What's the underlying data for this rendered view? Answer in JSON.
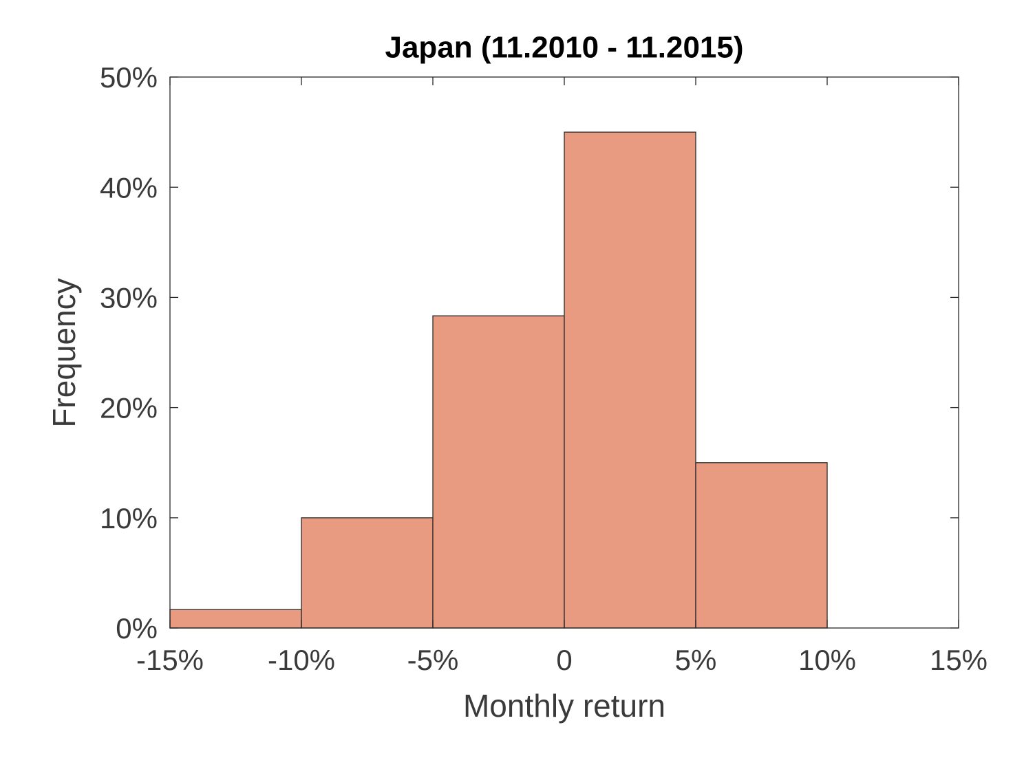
{
  "chart_data": {
    "type": "histogram",
    "title": "Japan (11.2010 - 11.2015)",
    "x_label": "Monthly return",
    "y_label": "Frequency",
    "bins": [
      -15,
      -10,
      -5,
      0,
      5,
      10,
      15
    ],
    "counts": [
      1.67,
      10,
      28.33,
      45,
      15,
      0
    ],
    "color": "#e99b82",
    "edge_color": "#2b2b2b",
    "xlim": [
      -15,
      15
    ],
    "ylim": [
      0,
      50
    ],
    "xticks": [
      {
        "value": -15,
        "label": "-15%"
      },
      {
        "value": -10,
        "label": "-10%"
      },
      {
        "value": -5,
        "label": "-5%"
      },
      0,
      {
        "value": 5,
        "label": "5%"
      },
      {
        "value": 10,
        "label": "10%"
      },
      {
        "value": 15,
        "label": "15%"
      }
    ],
    "yticks": [
      {
        "value": 0,
        "label": "0%"
      },
      {
        "value": 10,
        "label": "10%"
      },
      {
        "value": 20,
        "label": "20%"
      },
      {
        "value": 30,
        "label": "30%"
      },
      {
        "value": 40,
        "label": "40%"
      },
      {
        "value": 50,
        "label": "50%"
      }
    ],
    "grid": false
  }
}
